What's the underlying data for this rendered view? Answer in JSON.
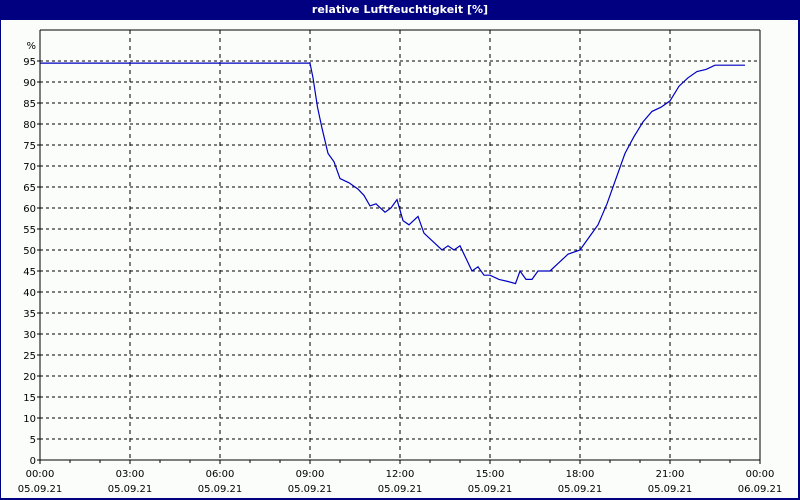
{
  "title": "relative Luftfeuchtigkeit [%]",
  "colors": {
    "titlebar": "#000080",
    "line": "#0000c0",
    "grid": "#000000",
    "background": "#fbfdfb"
  },
  "chart_data": {
    "type": "line",
    "title": "relative Luftfeuchtigkeit [%]",
    "xlabel": "",
    "ylabel": "%",
    "ylim": [
      0,
      100
    ],
    "xlim": [
      "05.09.21 00:00",
      "06.09.21 00:00"
    ],
    "grid": true,
    "legend": null,
    "y_ticks": [
      "0",
      "5",
      "10",
      "15",
      "20",
      "25",
      "30",
      "35",
      "40",
      "45",
      "50",
      "55",
      "60",
      "65",
      "70",
      "75",
      "80",
      "85",
      "90",
      "95",
      "%"
    ],
    "x_ticks": [
      {
        "time": "00:00",
        "date": "05.09.21"
      },
      {
        "time": "03:00",
        "date": "05.09.21"
      },
      {
        "time": "06:00",
        "date": "05.09.21"
      },
      {
        "time": "09:00",
        "date": "05.09.21"
      },
      {
        "time": "12:00",
        "date": "05.09.21"
      },
      {
        "time": "15:00",
        "date": "05.09.21"
      },
      {
        "time": "18:00",
        "date": "05.09.21"
      },
      {
        "time": "21:00",
        "date": "05.09.21"
      },
      {
        "time": "00:00",
        "date": "06.09.21"
      }
    ],
    "series": [
      {
        "name": "relative Luftfeuchtigkeit",
        "x_hours": [
          0,
          9.0,
          9.1,
          9.25,
          9.4,
          9.6,
          9.8,
          10.0,
          10.3,
          10.6,
          10.8,
          11.0,
          11.2,
          11.5,
          11.7,
          11.9,
          12.1,
          12.3,
          12.6,
          12.8,
          13.1,
          13.4,
          13.6,
          13.8,
          14.0,
          14.2,
          14.4,
          14.6,
          14.8,
          15.0,
          15.3,
          15.6,
          15.85,
          16.0,
          16.2,
          16.4,
          16.6,
          16.8,
          17.0,
          17.3,
          17.6,
          18.0,
          18.3,
          18.6,
          18.9,
          19.2,
          19.5,
          19.8,
          20.1,
          20.4,
          20.7,
          21.0,
          21.3,
          21.6,
          21.9,
          22.2,
          22.5,
          22.8,
          23.5
        ],
        "values": [
          94.5,
          94.5,
          91,
          84,
          79,
          73,
          71,
          67,
          66,
          64.5,
          63,
          60.5,
          61,
          59,
          60,
          62,
          57,
          56,
          58,
          54,
          52,
          50,
          51,
          50,
          51,
          48,
          45,
          46,
          44,
          44,
          43,
          42.5,
          42,
          45,
          43,
          43,
          45,
          45,
          45,
          47,
          49,
          50,
          53,
          56,
          61,
          67,
          73,
          77,
          80.5,
          83,
          84,
          85.5,
          89,
          91,
          92.5,
          93,
          94,
          94,
          94
        ]
      }
    ]
  }
}
